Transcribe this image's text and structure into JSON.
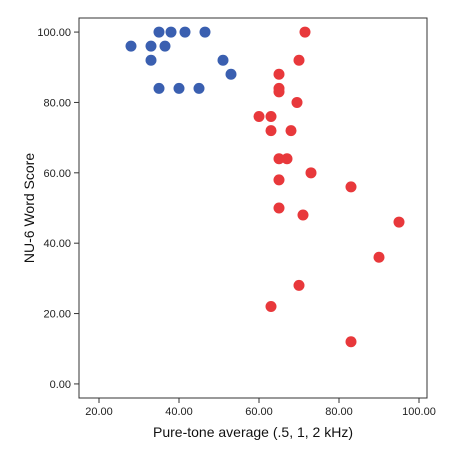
{
  "chart_data": {
    "type": "scatter",
    "title": "",
    "xlabel": "Pure-tone average (.5, 1, 2 kHz)",
    "ylabel": "NU-6 Word Score",
    "xlim": [
      15,
      102
    ],
    "ylim": [
      -4,
      104
    ],
    "x_ticks": [
      "20.00",
      "40.00",
      "60.00",
      "80.00",
      "100.00"
    ],
    "x_tick_values": [
      20,
      40,
      60,
      80,
      100
    ],
    "y_ticks": [
      "0.00",
      "20.00",
      "40.00",
      "60.00",
      "80.00",
      "100.00"
    ],
    "y_tick_values": [
      0,
      20,
      40,
      60,
      80,
      100
    ],
    "grid": false,
    "legend": "none",
    "series": [
      {
        "color": "#3a5fb0",
        "points": [
          [
            28,
            96
          ],
          [
            33,
            96
          ],
          [
            36.5,
            96
          ],
          [
            33,
            92
          ],
          [
            35,
            100
          ],
          [
            38,
            100
          ],
          [
            41.5,
            100
          ],
          [
            46.5,
            100
          ],
          [
            51,
            92
          ],
          [
            53,
            88
          ],
          [
            35,
            84
          ],
          [
            40,
            84
          ],
          [
            45,
            84
          ]
        ]
      },
      {
        "color": "#e8383b",
        "points": [
          [
            71.5,
            100
          ],
          [
            70,
            92
          ],
          [
            65,
            88
          ],
          [
            65,
            84
          ],
          [
            65,
            83
          ],
          [
            69.5,
            80
          ],
          [
            60,
            76
          ],
          [
            63,
            76
          ],
          [
            63,
            72
          ],
          [
            68,
            72
          ],
          [
            65,
            64
          ],
          [
            67,
            64
          ],
          [
            73,
            60
          ],
          [
            65,
            58
          ],
          [
            83,
            56
          ],
          [
            65,
            50
          ],
          [
            71,
            48
          ],
          [
            95,
            46
          ],
          [
            90,
            36
          ],
          [
            70,
            28
          ],
          [
            63,
            22
          ],
          [
            83,
            12
          ]
        ]
      }
    ]
  }
}
